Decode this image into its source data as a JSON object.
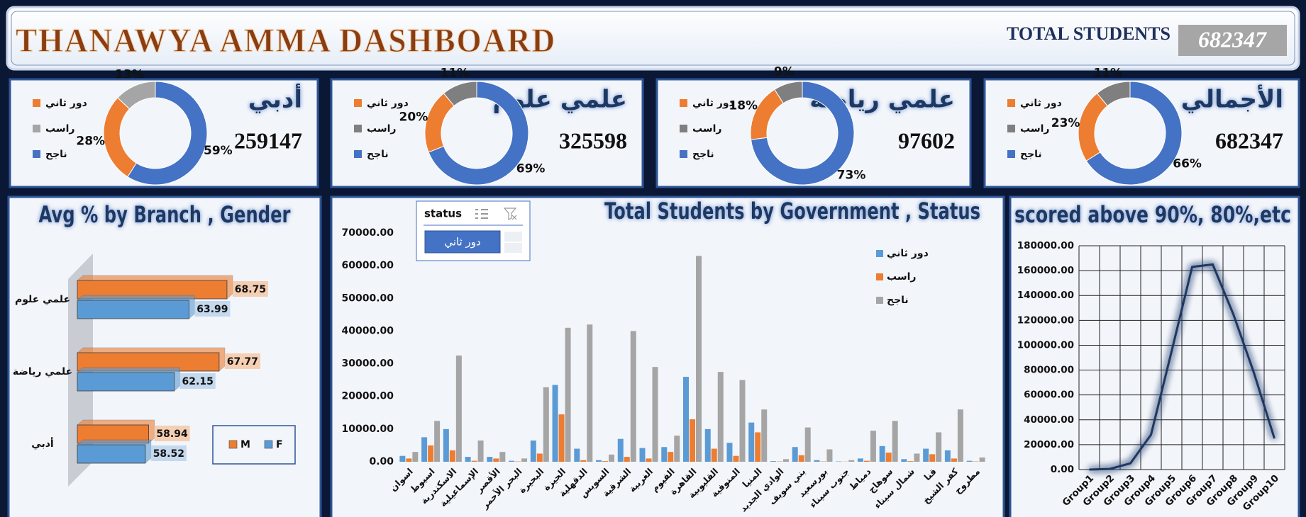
{
  "header": {
    "title": "THANAWYA AMMA DASHBOARD",
    "total_label": "TOTAL STUDENTS",
    "total_value": 682347
  },
  "chart_data": [
    {
      "type": "donut",
      "title": "أدبي",
      "total": 259147,
      "categories": [
        "دور ثاني",
        "راسب",
        "ناجح"
      ],
      "colors": [
        "#ed7d31",
        "#a5a5a5",
        "#4472c4"
      ],
      "values": [
        28,
        13,
        59
      ],
      "value_labels": [
        "28%",
        "13%",
        "59%"
      ]
    },
    {
      "type": "donut",
      "title": "علمي علوم",
      "total": 325598,
      "categories": [
        "دور ثاني",
        "راسب",
        "ناجح"
      ],
      "colors": [
        "#ed7d31",
        "#7f7f7f",
        "#4472c4"
      ],
      "values": [
        20,
        11,
        69
      ],
      "value_labels": [
        "20%",
        "11%",
        "69%"
      ]
    },
    {
      "type": "donut",
      "title": "علمي رياضه",
      "total": 97602,
      "categories": [
        "دور ثاني",
        "راسب",
        "ناجح"
      ],
      "colors": [
        "#ed7d31",
        "#7f7f7f",
        "#4472c4"
      ],
      "values": [
        18,
        9,
        73
      ],
      "value_labels": [
        "18%",
        "9%",
        "73%"
      ]
    },
    {
      "type": "donut",
      "title": "الأجمالي",
      "total": 682347,
      "categories": [
        "دور ثاني",
        "راسب",
        "ناجح"
      ],
      "colors": [
        "#ed7d31",
        "#7f7f7f",
        "#4472c4"
      ],
      "values": [
        23,
        11,
        66
      ],
      "value_labels": [
        "23%",
        "11%",
        "66%"
      ]
    },
    {
      "type": "hbar",
      "title": "Avg % by Branch , Gender",
      "categories": [
        "علمي علوم",
        "علمي رياضة",
        "أدبي"
      ],
      "series": [
        {
          "name": "M",
          "color": "#ed7d31",
          "values": [
            68.75,
            67.77,
            58.94
          ]
        },
        {
          "name": "F",
          "color": "#5b9bd5",
          "values": [
            63.99,
            62.15,
            58.52
          ]
        }
      ],
      "xlim": [
        50,
        70
      ]
    },
    {
      "type": "column",
      "title": "Total Students by Government , Status",
      "slicer": {
        "title": "status",
        "selected": "دور ثاني"
      },
      "categories": [
        "اسوان",
        "اسيوط",
        "الاسكندرية",
        "الإسماعيلية",
        "الأقصر",
        "البحر الأحمر",
        "البحيرة",
        "الجيزة",
        "الدقهلية",
        "السويس",
        "الشرقية",
        "الغربية",
        "الفيوم",
        "القاهرة",
        "القليوبية",
        "المنوفية",
        "المنيا",
        "الوادي الجديد",
        "بني سويف",
        "بورسعيد",
        "جنوب سيناء",
        "دمياط",
        "سوهاج",
        "شمال سيناء",
        "قنا",
        "كفر الشيخ",
        "مطروح"
      ],
      "series": [
        {
          "name": "دور ثاني",
          "color": "#5b9bd5",
          "values": [
            1800,
            7500,
            10000,
            1500,
            1500,
            300,
            6500,
            23500,
            4000,
            500,
            7000,
            4200,
            4500,
            26000,
            10000,
            5800,
            12000,
            200,
            4500,
            500,
            100,
            1000,
            4800,
            800,
            4000,
            3500,
            300
          ]
        },
        {
          "name": "راسب",
          "color": "#ed7d31",
          "values": [
            1000,
            5000,
            3500,
            300,
            1000,
            100,
            2500,
            14500,
            500,
            200,
            1500,
            1000,
            3000,
            13000,
            4000,
            1800,
            9000,
            100,
            2000,
            100,
            50,
            300,
            2800,
            200,
            2300,
            1000,
            100
          ]
        },
        {
          "name": "ناجح",
          "color": "#a5a5a5",
          "values": [
            3000,
            12500,
            32500,
            6500,
            3000,
            1000,
            22800,
            41000,
            42000,
            2200,
            40000,
            29000,
            8000,
            63000,
            27500,
            25000,
            16000,
            800,
            10500,
            3800,
            500,
            9500,
            12500,
            2500,
            9000,
            16000,
            1300
          ]
        }
      ],
      "ylim": [
        0,
        70000
      ],
      "yticks": [
        {
          "value": 0,
          "label": "0.00"
        },
        {
          "value": 10000,
          "label": "10000.00"
        },
        {
          "value": 20000,
          "label": "20000.00"
        },
        {
          "value": 30000,
          "label": "30000.00"
        },
        {
          "value": 40000,
          "label": "40000.00"
        },
        {
          "value": 50000,
          "label": "50000.00"
        },
        {
          "value": 60000,
          "label": "60000.00"
        },
        {
          "value": 70000,
          "label": "70000.00"
        }
      ]
    },
    {
      "type": "line",
      "title": "scored above 90%, 80%,etc",
      "color": "#1f3864",
      "categories": [
        "Group1",
        "Group2",
        "Group3",
        "Group4",
        "Group5",
        "Group6",
        "Group7",
        "Group8",
        "Group9",
        "Group10"
      ],
      "values": [
        0,
        500,
        5000,
        28000,
        95000,
        163000,
        165000,
        125000,
        78000,
        25000
      ],
      "ylim": [
        0,
        180000
      ],
      "yticks": [
        {
          "value": 0,
          "label": "0.00"
        },
        {
          "value": 20000,
          "label": "20000.00"
        },
        {
          "value": 40000,
          "label": "40000.00"
        },
        {
          "value": 60000,
          "label": "60000.00"
        },
        {
          "value": 80000,
          "label": "80000.00"
        },
        {
          "value": 100000,
          "label": "100000.00"
        },
        {
          "value": 120000,
          "label": "120000.00"
        },
        {
          "value": 140000,
          "label": "140000.00"
        },
        {
          "value": 160000,
          "label": "160000.00"
        },
        {
          "value": 180000,
          "label": "180000.00"
        }
      ],
      "grid": true
    }
  ]
}
